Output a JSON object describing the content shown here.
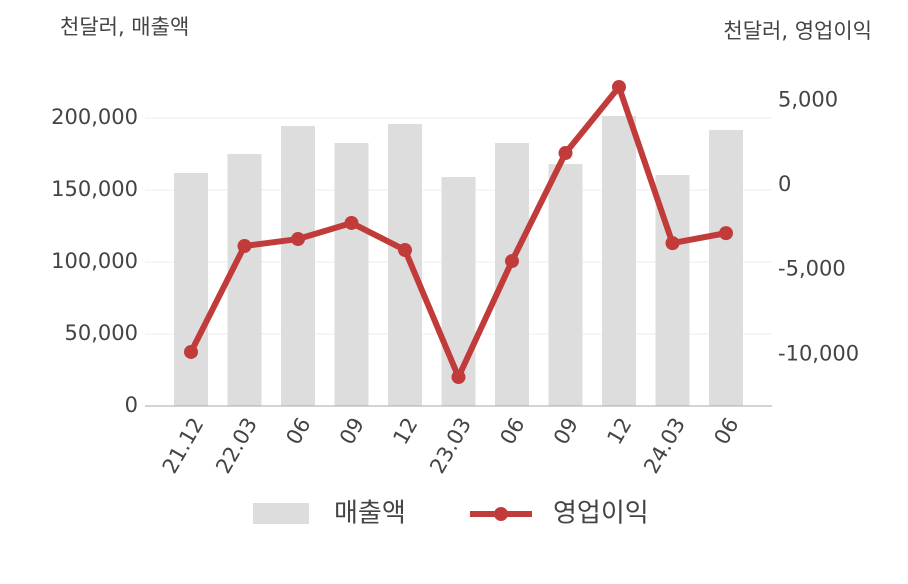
{
  "chart_data": {
    "type": "bar-line",
    "y_label": "천달러, 매출액",
    "y2_label": "천달러, 영업이익",
    "categories": [
      "21.12",
      "22.03",
      "06",
      "09",
      "12",
      "23.03",
      "06",
      "09",
      "12",
      "24.03",
      "06"
    ],
    "series": [
      {
        "name": "매출액",
        "type": "bar",
        "color": "#dddddd",
        "values": [
          161800,
          175000,
          194400,
          182600,
          195800,
          159000,
          182600,
          168000,
          201400,
          160400,
          191700
        ]
      },
      {
        "name": "영업이익",
        "type": "line",
        "axis": "y2",
        "color": "#c23b3b",
        "values": [
          -9860,
          -3600,
          -3190,
          -2240,
          -3840,
          -11340,
          -4490,
          1890,
          5790,
          -3430,
          -2840
        ]
      }
    ],
    "ylim": [
      0,
      220000
    ],
    "yticks": [
      0,
      {
        "value": 50000,
        "label": "50,000"
      },
      {
        "value": 100000,
        "label": "100,000"
      },
      {
        "value": 150000,
        "label": "150,000"
      },
      {
        "value": 200000,
        "label": "200,000"
      }
    ],
    "y2lim": [
      -13050,
      5660
    ],
    "y2ticks": [
      {
        "value": -10000,
        "label": "-10,000"
      },
      {
        "value": -5000,
        "label": "-5,000"
      },
      0,
      {
        "value": 5000,
        "label": "5,000"
      }
    ],
    "grid": true
  }
}
